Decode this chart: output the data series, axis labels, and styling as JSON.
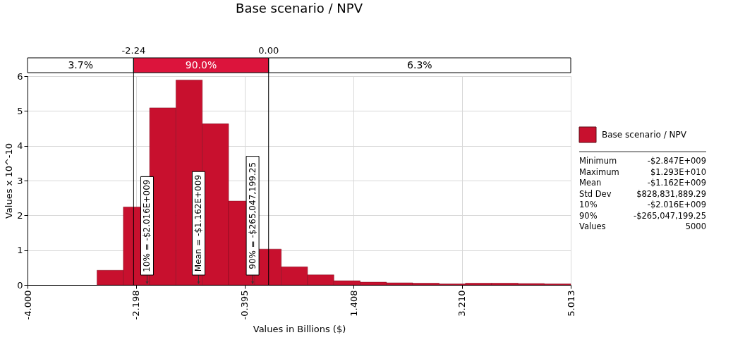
{
  "chart_data": {
    "type": "histogram",
    "title": "Base scenario / NPV",
    "xlabel": "Values in Billions ($)",
    "ylabel": "Values x 10^-10",
    "bins": [
      -2.847,
      -2.41,
      -1.974,
      -1.537,
      -1.1,
      -0.664,
      -0.227,
      0.21,
      0.646,
      1.083,
      1.52,
      1.956,
      2.393,
      2.83,
      3.266,
      3.703,
      4.14,
      4.576,
      5.013
    ],
    "series": [
      {
        "name": "Base scenario / NPV",
        "color": "#c8102e",
        "values": [
          0.42,
          2.24,
          5.09,
          5.89,
          4.63,
          2.41,
          1.03,
          0.52,
          0.29,
          0.12,
          0.08,
          0.06,
          0.05,
          0.03,
          0.05,
          0.05,
          0.04,
          0.03
        ]
      }
    ],
    "xlim": [
      -4.0,
      5.013
    ],
    "xticks": [
      {
        "value": -4.0,
        "label": "-4.000"
      },
      {
        "value": -2.198,
        "label": "-2.198"
      },
      {
        "value": -0.395,
        "label": "-0.395"
      },
      {
        "value": 1.408,
        "label": "1.408"
      },
      {
        "value": 3.21,
        "label": "3.210"
      },
      {
        "value": 5.013,
        "label": "5.013"
      }
    ],
    "ylim": [
      0,
      6
    ],
    "yticks": [
      0,
      1,
      2,
      3,
      4,
      5,
      6
    ],
    "grid": true,
    "legend": "right",
    "ref_lines": [
      {
        "axis": "x",
        "value": -2.24,
        "label": "-2.24",
        "color": "#000000"
      },
      {
        "axis": "x",
        "value": 0.0,
        "label": "0.00",
        "color": "#000000"
      }
    ],
    "annotations": [
      "3.7%",
      "90.0%",
      "6.3%",
      {
        "text": "10% = -$2.016E+009",
        "x": -2.016,
        "y": 0
      },
      {
        "text": "Mean = -$1.162E+009",
        "x": -1.162,
        "y": 0
      },
      {
        "text": "90% = -$265,047,199.25",
        "x": -0.265,
        "y": 0
      },
      "Minimum\t-$2.847E+009",
      "Maximum\t$1.293E+010",
      "Mean\t-$1.162E+009",
      "Std Dev\t$828,831,889.29",
      "10%\t-$2.016E+009",
      "90%\t-$265,047,199.25",
      "Values\t5000"
    ]
  }
}
